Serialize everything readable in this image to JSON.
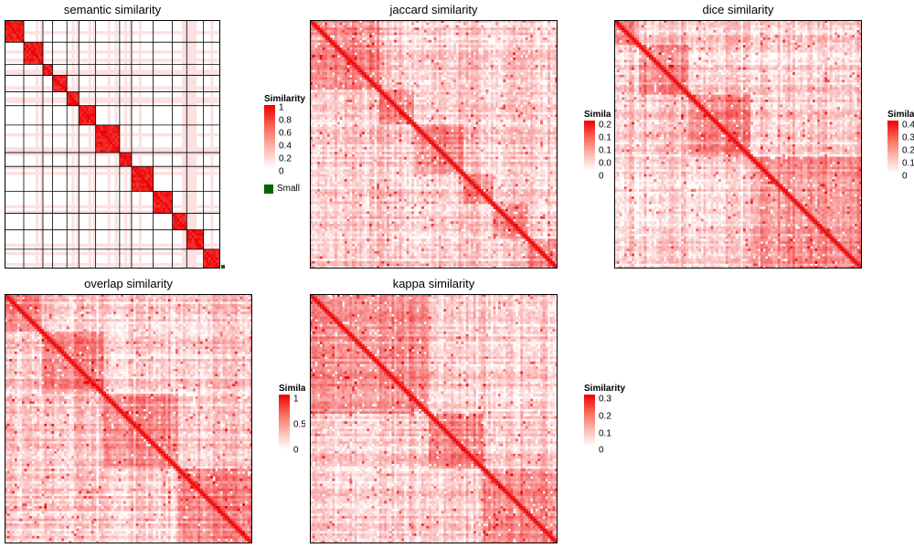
{
  "colors": {
    "high": "#ee0000",
    "low": "#ffffff",
    "border": "#000000",
    "small_group": "#006400"
  },
  "chart_data": [
    {
      "type": "heatmap",
      "title": "semantic similarity",
      "legend_title": "Similarity",
      "legend_ticks": [
        "1",
        "0.8",
        "0.6",
        "0.4",
        "0.2",
        "0"
      ],
      "zlim": [
        0,
        1
      ],
      "extra_legend_label": "Small",
      "n_terms": 90,
      "clusters": [
        8,
        8,
        4,
        6,
        5,
        7,
        10,
        5,
        9,
        8,
        6,
        7,
        7
      ],
      "block_diagonal": true,
      "grid_lines": true
    },
    {
      "type": "heatmap",
      "title": "jaccard similarity",
      "legend_title": "Simila",
      "legend_ticks": [
        "0.2",
        "0.1",
        "0.1",
        "0.0",
        "0"
      ],
      "zlim": [
        0,
        0.25
      ],
      "n_terms": 100,
      "clusters": [
        28,
        14,
        20,
        12,
        14,
        12
      ]
    },
    {
      "type": "heatmap",
      "title": "dice similarity",
      "legend_title": "Simila",
      "legend_ticks": [
        "0.4",
        "0.3",
        "0.2",
        "0.1",
        "0"
      ],
      "zlim": [
        0,
        0.45
      ],
      "n_terms": 100,
      "clusters": [
        10,
        20,
        25,
        45
      ]
    },
    {
      "type": "heatmap",
      "title": "overlap similarity",
      "legend_title": "Simila",
      "legend_ticks": [
        "1",
        "0.5",
        "0"
      ],
      "zlim": [
        0,
        1
      ],
      "n_terms": 100,
      "clusters": [
        15,
        25,
        30,
        30
      ]
    },
    {
      "type": "heatmap",
      "title": "kappa similarity",
      "legend_title": "Similarity",
      "legend_ticks": [
        "0.3",
        "0.2",
        "0.1",
        "0"
      ],
      "zlim": [
        0,
        0.3
      ],
      "n_terms": 100,
      "clusters": [
        48,
        22,
        30
      ]
    }
  ]
}
